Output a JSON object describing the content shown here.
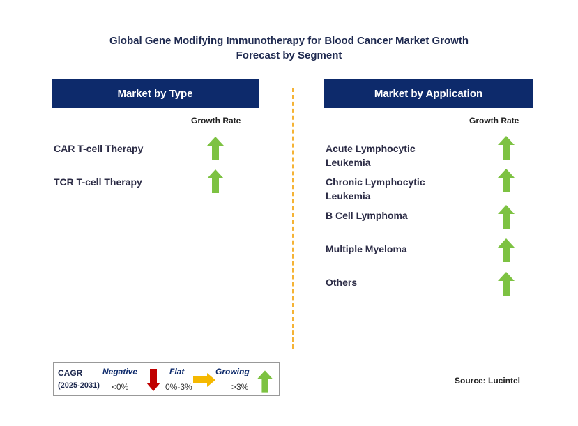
{
  "title_line1": "Global Gene Modifying Immunotherapy for Blood Cancer Market Growth",
  "title_line2": "Forecast by Segment",
  "left": {
    "header": "Market by Type",
    "growth_label": "Growth Rate",
    "items": [
      {
        "label_line1": "CAR T-cell Therapy",
        "label_line2": "",
        "trend": "growing"
      },
      {
        "label_line1": "TCR T-cell Therapy",
        "label_line2": "",
        "trend": "growing"
      }
    ]
  },
  "right": {
    "header": "Market by Application",
    "growth_label": "Growth Rate",
    "items": [
      {
        "label_line1": "Acute Lymphocytic",
        "label_line2": "Leukemia",
        "trend": "growing"
      },
      {
        "label_line1": "Chronic Lymphocytic",
        "label_line2": "Leukemia",
        "trend": "growing"
      },
      {
        "label_line1": "B Cell Lymphoma",
        "label_line2": "",
        "trend": "growing"
      },
      {
        "label_line1": "Multiple Myeloma",
        "label_line2": "",
        "trend": "growing"
      },
      {
        "label_line1": "Others",
        "label_line2": "",
        "trend": "growing"
      }
    ]
  },
  "legend": {
    "cagr": "CAGR",
    "period": "(2025-2031)",
    "negative": "Negative",
    "negative_range": "<0%",
    "flat": "Flat",
    "flat_range": "0%-3%",
    "growing": "Growing",
    "growing_range": ">3%"
  },
  "source": "Source: Lucintel",
  "colors": {
    "header_bg": "#0d2a6b",
    "growing": "#7dc242",
    "negative": "#c00000",
    "flat": "#f5b800",
    "divider": "#f5b335"
  }
}
